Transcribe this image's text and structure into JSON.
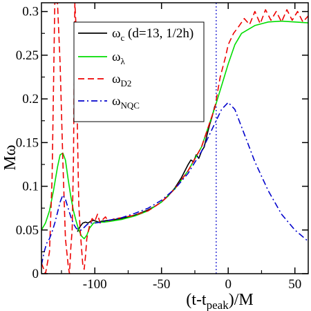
{
  "chart_data": {
    "type": "line",
    "xlabel": {
      "main": "(t-t",
      "sub": "peak",
      "tail": ")/M"
    },
    "ylabel": "Mω",
    "xlim": [
      -140,
      60
    ],
    "ylim": [
      0,
      0.31
    ],
    "xticks": [
      -100,
      -50,
      0,
      50
    ],
    "xtick_labels": [
      "-100",
      "-50",
      "0",
      "50"
    ],
    "yticks": [
      0,
      0.05,
      0.1,
      0.15,
      0.2,
      0.25,
      0.3
    ],
    "ytick_labels": [
      "0",
      "0.05",
      "0.1",
      "0.15",
      "0.2",
      "0.25",
      "0.3"
    ],
    "vline": {
      "x": -9,
      "color": "#0000cc",
      "style": "dotted"
    },
    "legend_position": "top-left",
    "series": [
      {
        "name": "ω",
        "sub": "c",
        "suffix": " (d=13, 1/2h)",
        "color": "#000000",
        "dash": "solid",
        "x": [
          -113,
          -111,
          -109,
          -107,
          -105,
          -103,
          -101,
          -99,
          -97,
          -95,
          -90,
          -85,
          -80,
          -75,
          -70,
          -65,
          -60,
          -55,
          -50,
          -45,
          -40,
          -35,
          -30,
          -28,
          -26,
          -24,
          -22,
          -20,
          -18,
          -16,
          -14,
          -12,
          -10
        ],
        "y": [
          0.048,
          0.054,
          0.058,
          0.059,
          0.058,
          0.06,
          0.061,
          0.06,
          0.059,
          0.06,
          0.061,
          0.062,
          0.063,
          0.065,
          0.067,
          0.07,
          0.073,
          0.077,
          0.082,
          0.089,
          0.098,
          0.11,
          0.125,
          0.13,
          0.128,
          0.136,
          0.132,
          0.14,
          0.145,
          0.158,
          0.17,
          0.18,
          0.192
        ]
      },
      {
        "name": "ω",
        "sub": "λ",
        "suffix": "",
        "color": "#00dd00",
        "dash": "solid",
        "x": [
          -140,
          -137,
          -134,
          -131,
          -128,
          -126,
          -124,
          -122,
          -120,
          -118,
          -116,
          -114,
          -112,
          -110,
          -108,
          -106,
          -104,
          -101,
          -97,
          -93,
          -88,
          -80,
          -70,
          -60,
          -50,
          -40,
          -30,
          -20,
          -10,
          -5,
          0,
          5,
          10,
          20,
          30,
          40,
          50,
          60
        ],
        "y": [
          0.05,
          0.058,
          0.072,
          0.095,
          0.122,
          0.136,
          0.138,
          0.13,
          0.108,
          0.088,
          0.072,
          0.06,
          0.05,
          0.043,
          0.04,
          0.044,
          0.052,
          0.058,
          0.059,
          0.059,
          0.06,
          0.062,
          0.066,
          0.072,
          0.082,
          0.097,
          0.118,
          0.145,
          0.19,
          0.215,
          0.24,
          0.262,
          0.275,
          0.284,
          0.288,
          0.289,
          0.288,
          0.287
        ]
      },
      {
        "name": "ω",
        "sub": "D2",
        "suffix": "",
        "color": "#ee0000",
        "dash": "dashed",
        "x": [
          -140,
          -137,
          -134,
          -132,
          -130,
          -128,
          -126,
          -124,
          -122,
          -120,
          -119,
          -118,
          -117,
          -116,
          -115,
          -114,
          -113,
          -112,
          -111,
          -110,
          -109,
          -108,
          -107,
          -106,
          -104,
          -102,
          -100,
          -98,
          -96,
          -94,
          -92,
          -90,
          -85,
          -80,
          -70,
          -60,
          -50,
          -40,
          -30,
          -20,
          -10,
          -6,
          -2,
          0,
          4,
          8,
          12,
          16,
          20,
          24,
          28,
          32,
          36,
          40,
          44,
          48,
          52,
          56,
          60
        ],
        "y": [
          0.012,
          0.0,
          0.025,
          0.11,
          0.31,
          0.31,
          0.24,
          0.13,
          0.04,
          0.01,
          0.0,
          0.03,
          0.05,
          0.13,
          0.31,
          0.28,
          0.16,
          0.08,
          0.05,
          0.03,
          0.01,
          0.005,
          0.02,
          0.04,
          0.055,
          0.063,
          0.06,
          0.068,
          0.058,
          0.062,
          0.065,
          0.06,
          0.063,
          0.064,
          0.067,
          0.072,
          0.082,
          0.097,
          0.118,
          0.145,
          0.19,
          0.225,
          0.248,
          0.262,
          0.275,
          0.283,
          0.292,
          0.285,
          0.3,
          0.286,
          0.302,
          0.29,
          0.3,
          0.288,
          0.302,
          0.29,
          0.3,
          0.288,
          0.295
        ]
      },
      {
        "name": "ω",
        "sub": "NQC",
        "suffix": "",
        "color": "#0000cc",
        "dash": "dashdot",
        "x": [
          -140,
          -138,
          -136,
          -134,
          -132,
          -130,
          -128,
          -126,
          -124,
          -122,
          -120,
          -118,
          -116,
          -114,
          -112,
          -110,
          -108,
          -106,
          -104,
          -102,
          -100,
          -95,
          -90,
          -80,
          -70,
          -60,
          -50,
          -40,
          -30,
          -20,
          -10,
          -5,
          0,
          5,
          10,
          20,
          30,
          40,
          50,
          60
        ],
        "y": [
          0.01,
          0.025,
          0.035,
          0.04,
          0.048,
          0.058,
          0.07,
          0.082,
          0.09,
          0.085,
          0.075,
          0.065,
          0.057,
          0.052,
          0.05,
          0.05,
          0.053,
          0.056,
          0.058,
          0.058,
          0.058,
          0.059,
          0.061,
          0.064,
          0.069,
          0.075,
          0.084,
          0.097,
          0.115,
          0.14,
          0.172,
          0.188,
          0.196,
          0.188,
          0.168,
          0.128,
          0.095,
          0.068,
          0.05,
          0.037
        ]
      }
    ]
  }
}
